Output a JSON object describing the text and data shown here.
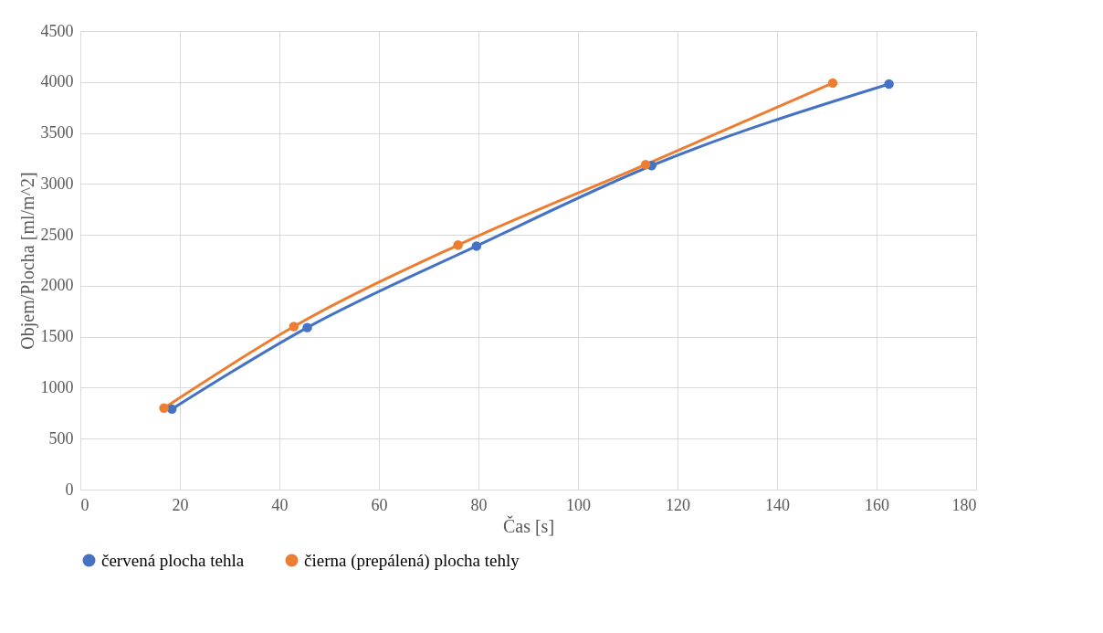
{
  "chart_data": {
    "type": "line",
    "xlabel": "Čas [s]",
    "ylabel": "Objem/Plocha [ml/m^2]",
    "xlim": [
      0,
      180
    ],
    "xticks": [
      0,
      20,
      40,
      60,
      80,
      100,
      120,
      140,
      160,
      180
    ],
    "ylim": [
      0,
      4500
    ],
    "yticks": [
      0,
      500,
      1000,
      1500,
      2000,
      2500,
      3000,
      3500,
      4000,
      4500
    ],
    "grid": true,
    "legend": "bottom",
    "marker": "circle",
    "line_style": "solid",
    "series": [
      {
        "name": "červená plocha tehla",
        "color": "#4472c4",
        "x": [
          18.4,
          45.6,
          79.6,
          114.8,
          162.5
        ],
        "values": [
          790,
          1590,
          2390,
          3180,
          3980
        ]
      },
      {
        "name": "čierna (prepálená) plocha tehly",
        "color": "#ed7d31",
        "x": [
          16.8,
          42.9,
          75.9,
          113.6,
          151.2
        ],
        "values": [
          800,
          1600,
          2400,
          3190,
          3990
        ]
      }
    ]
  }
}
